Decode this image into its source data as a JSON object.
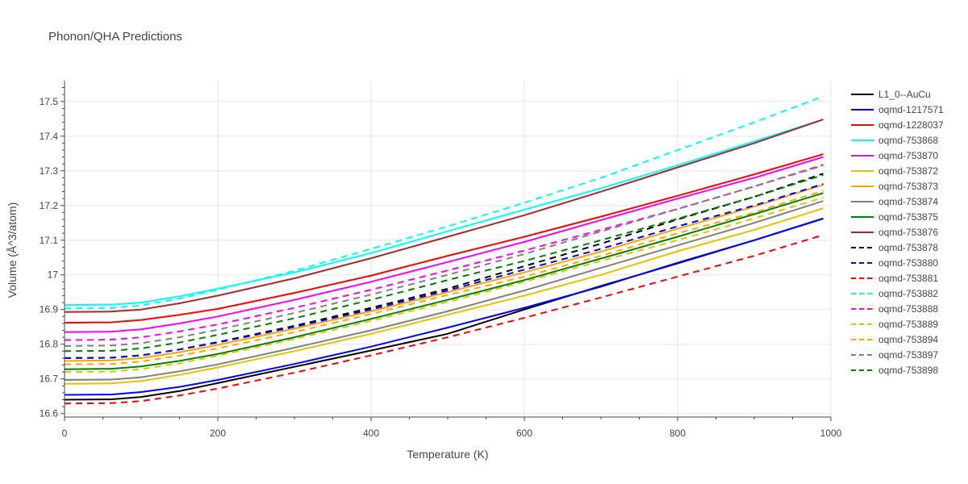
{
  "chart_data": {
    "type": "line",
    "title": "Phonon/QHA Predictions",
    "xlabel": "Temperature (K)",
    "ylabel": "Volume (Å^3/atom)",
    "xlim": [
      0,
      1000
    ],
    "ylim": [
      16.59,
      17.56
    ],
    "xticks": [
      0,
      200,
      400,
      600,
      800,
      1000
    ],
    "xtick_labels": [
      "0",
      "200",
      "400",
      "600",
      "800",
      "1000"
    ],
    "yticks": [
      16.6,
      16.7,
      16.8,
      16.9,
      17.0,
      17.1,
      17.2,
      17.3,
      17.4,
      17.5
    ],
    "ytick_labels": [
      "16.6",
      "16.7",
      "16.8",
      "16.9",
      "17",
      "17.1",
      "17.2",
      "17.3",
      "17.4",
      "17.5"
    ],
    "grid": true,
    "legend_position": "right",
    "x": [
      0,
      60,
      100,
      150,
      200,
      300,
      400,
      500,
      600,
      700,
      800,
      900,
      990
    ],
    "series": [
      {
        "name": "L1_0--AuCu",
        "color": "#000000",
        "dash": "solid",
        "values": [
          16.64,
          16.641,
          16.648,
          16.665,
          16.688,
          16.735,
          16.782,
          16.83,
          16.9,
          16.968,
          17.033,
          17.1,
          17.162
        ]
      },
      {
        "name": "oqmd-1217571",
        "color": "#0000ff",
        "dash": "solid",
        "values": [
          16.654,
          16.655,
          16.662,
          16.677,
          16.697,
          16.743,
          16.793,
          16.848,
          16.905,
          16.966,
          17.035,
          17.1,
          17.163
        ]
      },
      {
        "name": "oqmd-1228037",
        "color": "#ff0000",
        "dash": "solid",
        "values": [
          16.862,
          16.863,
          16.87,
          16.885,
          16.902,
          16.948,
          16.998,
          17.055,
          17.11,
          17.168,
          17.228,
          17.29,
          17.348
        ]
      },
      {
        "name": "oqmd-753868",
        "color": "#00ffff",
        "dash": "solid",
        "values": [
          16.913,
          16.914,
          16.92,
          16.938,
          16.96,
          17.007,
          17.063,
          17.126,
          17.188,
          17.25,
          17.316,
          17.385,
          17.448
        ]
      },
      {
        "name": "oqmd-753870",
        "color": "#ff00ff",
        "dash": "solid",
        "values": [
          16.835,
          16.836,
          16.843,
          16.86,
          16.88,
          16.928,
          16.98,
          17.037,
          17.095,
          17.158,
          17.22,
          17.28,
          17.34
        ]
      },
      {
        "name": "oqmd-753872",
        "color": "#e8c000",
        "dash": "solid",
        "values": [
          16.686,
          16.687,
          16.694,
          16.712,
          16.733,
          16.78,
          16.83,
          16.885,
          16.94,
          17.0,
          17.068,
          17.13,
          17.192
        ]
      },
      {
        "name": "oqmd-753873",
        "color": "#ffa500",
        "dash": "solid",
        "values": [
          16.752,
          16.753,
          16.76,
          16.777,
          16.798,
          16.845,
          16.895,
          16.95,
          17.007,
          17.067,
          17.133,
          17.197,
          17.26
        ]
      },
      {
        "name": "oqmd-753874",
        "color": "#808080",
        "dash": "solid",
        "values": [
          16.697,
          16.698,
          16.705,
          16.722,
          16.742,
          16.79,
          16.84,
          16.895,
          16.955,
          17.02,
          17.085,
          17.15,
          17.213
        ]
      },
      {
        "name": "oqmd-753875",
        "color": "#008000",
        "dash": "solid",
        "values": [
          16.728,
          16.729,
          16.736,
          16.752,
          16.772,
          16.82,
          16.873,
          16.928,
          16.985,
          17.047,
          17.11,
          17.175,
          17.236
        ]
      },
      {
        "name": "oqmd-753876",
        "color": "#a52a2a",
        "dash": "solid",
        "values": [
          16.893,
          16.894,
          16.9,
          16.918,
          16.94,
          16.99,
          17.048,
          17.11,
          17.172,
          17.24,
          17.31,
          17.38,
          17.448
        ]
      },
      {
        "name": "oqmd-753878",
        "color": "#000000",
        "dash": "dash",
        "values": [
          16.76,
          16.761,
          16.768,
          16.785,
          16.806,
          16.853,
          16.905,
          16.96,
          17.025,
          17.09,
          17.16,
          17.225,
          17.292
        ]
      },
      {
        "name": "oqmd-753880",
        "color": "#0000ff",
        "dash": "dash",
        "values": [
          16.76,
          16.761,
          16.768,
          16.785,
          16.805,
          16.85,
          16.9,
          16.955,
          17.015,
          17.075,
          17.14,
          17.2,
          17.262
        ]
      },
      {
        "name": "oqmd-753881",
        "color": "#ff0000",
        "dash": "dash",
        "values": [
          16.629,
          16.63,
          16.636,
          16.652,
          16.672,
          16.718,
          16.768,
          16.82,
          16.876,
          16.935,
          16.995,
          17.055,
          17.115
        ]
      },
      {
        "name": "oqmd-753882",
        "color": "#00ffff",
        "dash": "dash",
        "values": [
          16.903,
          16.904,
          16.912,
          16.932,
          16.957,
          17.012,
          17.075,
          17.14,
          17.208,
          17.28,
          17.36,
          17.44,
          17.515
        ]
      },
      {
        "name": "oqmd-753888",
        "color": "#ff00ff",
        "dash": "dash",
        "values": [
          16.812,
          16.813,
          16.82,
          16.837,
          16.857,
          16.905,
          16.957,
          17.013,
          17.07,
          17.13,
          17.19,
          17.255,
          17.316
        ]
      },
      {
        "name": "oqmd-753889",
        "color": "#e8c000",
        "dash": "dash",
        "values": [
          16.72,
          16.721,
          16.728,
          16.745,
          16.767,
          16.815,
          16.867,
          16.922,
          16.98,
          17.04,
          17.1,
          17.163,
          17.223
        ]
      },
      {
        "name": "oqmd-753894",
        "color": "#ffa500",
        "dash": "dash",
        "values": [
          16.742,
          16.743,
          16.75,
          16.767,
          16.788,
          16.835,
          16.887,
          16.942,
          16.995,
          17.055,
          17.12,
          17.18,
          17.243
        ]
      },
      {
        "name": "oqmd-753897",
        "color": "#808080",
        "dash": "dash",
        "values": [
          16.795,
          16.796,
          16.803,
          16.82,
          16.842,
          16.89,
          16.943,
          17.0,
          17.06,
          17.125,
          17.19,
          17.255,
          17.318
        ]
      },
      {
        "name": "oqmd-753898",
        "color": "#008000",
        "dash": "dash",
        "values": [
          16.78,
          16.781,
          16.788,
          16.805,
          16.827,
          16.875,
          16.928,
          16.985,
          17.04,
          17.1,
          17.162,
          17.225,
          17.288
        ]
      }
    ]
  }
}
